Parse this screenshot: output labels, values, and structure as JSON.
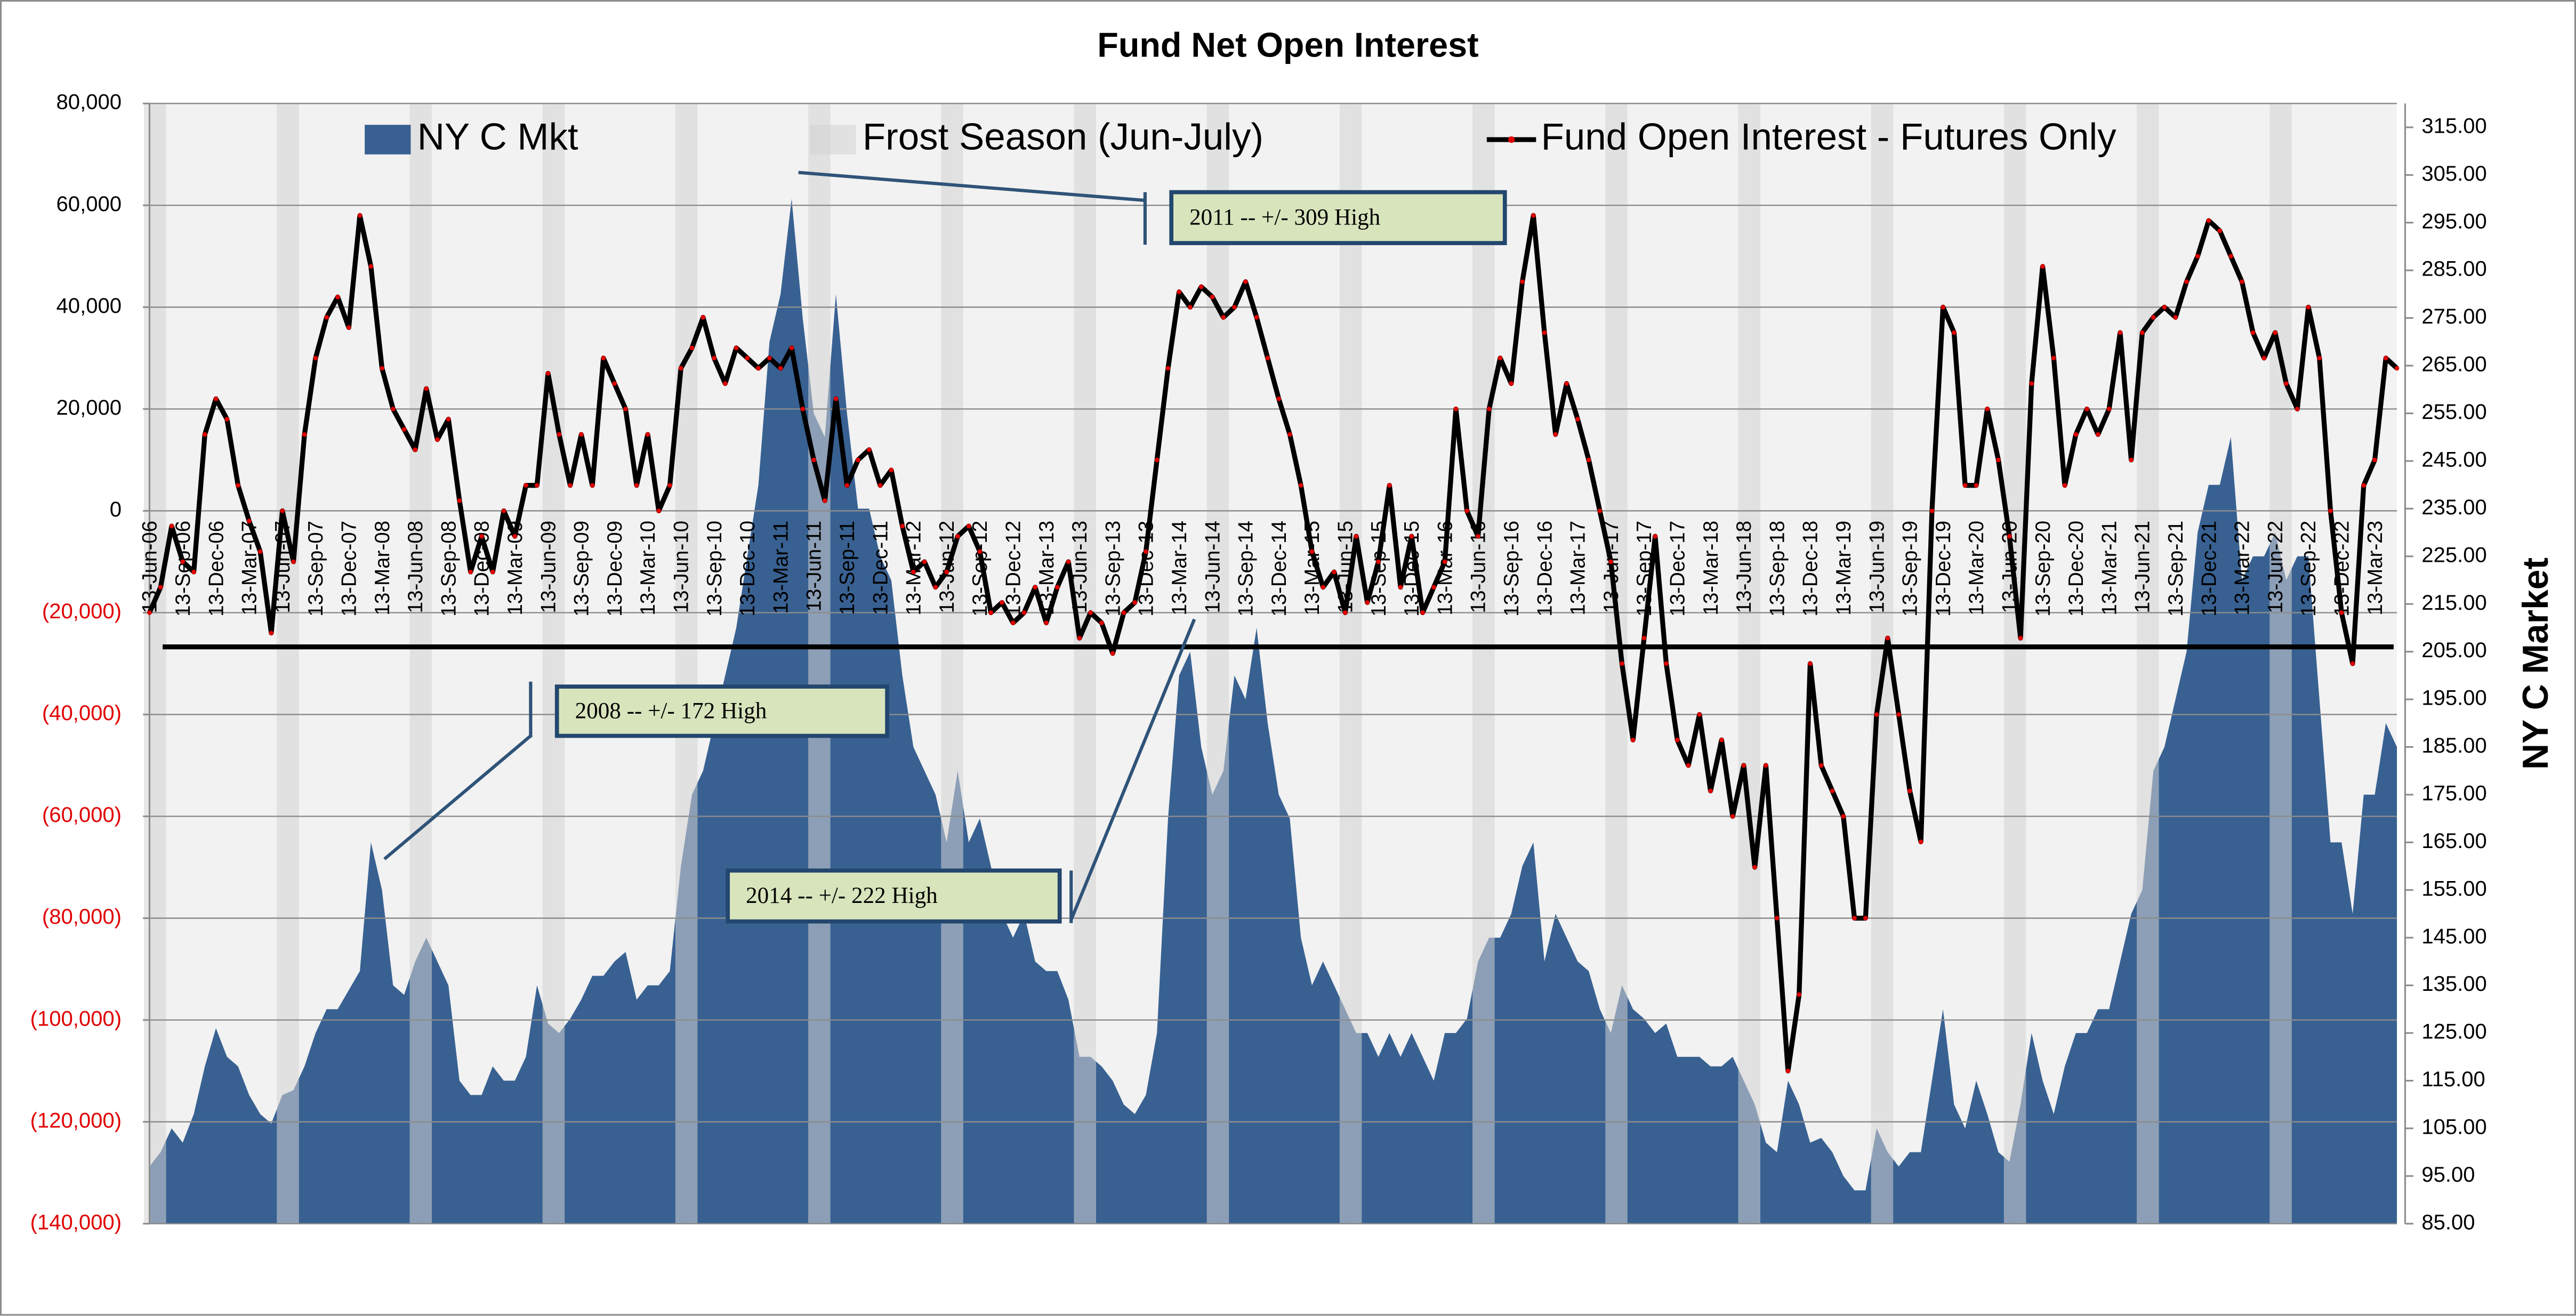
{
  "chart_data": {
    "type": "combo",
    "title": "Fund Net Open Interest",
    "y2_label": "NY C Market",
    "legend": "top",
    "grid": true,
    "negative_tick_color": "#e00000",
    "categories": [
      "13-Jun-06",
      null,
      null,
      "13-Sep-06",
      null,
      null,
      "13-Dec-06",
      null,
      null,
      "13-Mar-07",
      null,
      null,
      "13-Jun-07",
      null,
      null,
      "13-Sep-07",
      null,
      null,
      "13-Dec-07",
      null,
      null,
      "13-Mar-08",
      null,
      null,
      "13-Jun-08",
      null,
      null,
      "13-Sep-08",
      null,
      null,
      "13-Dec-08",
      null,
      null,
      "13-Mar-09",
      null,
      null,
      "13-Jun-09",
      null,
      null,
      "13-Sep-09",
      null,
      null,
      "13-Dec-09",
      null,
      null,
      "13-Mar-10",
      null,
      null,
      "13-Jun-10",
      null,
      null,
      "13-Sep-10",
      null,
      null,
      "13-Dec-10",
      null,
      null,
      "13-Mar-11",
      null,
      null,
      "13-Jun-11",
      null,
      null,
      "13-Sep-11",
      null,
      null,
      "13-Dec-11",
      null,
      null,
      "13-Mar-12",
      null,
      null,
      "13-Jun-12",
      null,
      null,
      "13-Sep-12",
      null,
      null,
      "13-Dec-12",
      null,
      null,
      "13-Mar-13",
      null,
      null,
      "13-Jun-13",
      null,
      null,
      "13-Sep-13",
      null,
      null,
      "13-Dec-13",
      null,
      null,
      "13-Mar-14",
      null,
      null,
      "13-Jun-14",
      null,
      null,
      "13-Sep-14",
      null,
      null,
      "13-Dec-14",
      null,
      null,
      "13-Mar-15",
      null,
      null,
      "13-Jun-15",
      null,
      null,
      "13-Sep-15",
      null,
      null,
      "13-Dec-15",
      null,
      null,
      "13-Mar-16",
      null,
      null,
      "13-Jun-16",
      null,
      null,
      "13-Sep-16",
      null,
      null,
      "13-Dec-16",
      null,
      null,
      "13-Mar-17",
      null,
      null,
      "13-Jun-17",
      null,
      null,
      "13-Sep-17",
      null,
      null,
      "13-Dec-17",
      null,
      null,
      "13-Mar-18",
      null,
      null,
      "13-Jun-18",
      null,
      null,
      "13-Sep-18",
      null,
      null,
      "13-Dec-18",
      null,
      null,
      "13-Mar-19",
      null,
      null,
      "13-Jun-19",
      null,
      null,
      "13-Sep-19",
      null,
      null,
      "13-Dec-19",
      null,
      null,
      "13-Mar-20",
      null,
      null,
      "13-Jun-20",
      null,
      null,
      "13-Sep-20",
      null,
      null,
      "13-Dec-20",
      null,
      null,
      "13-Mar-21",
      null,
      null,
      "13-Jun-21",
      null,
      null,
      "13-Sep-21",
      null,
      null,
      "13-Dec-21",
      null,
      null,
      "13-Mar-22",
      null,
      null,
      "13-Jun-22",
      null,
      null,
      "13-Sep-22",
      null,
      null,
      "13-Dec-22",
      null,
      null,
      "13-Mar-23",
      null,
      null
    ],
    "series": [
      {
        "name": "NY C Mkt",
        "type": "area",
        "axis": "y2",
        "color": "#386192",
        "values": [
          97,
          100,
          105,
          102,
          108,
          118,
          126,
          120,
          118,
          112,
          108,
          106,
          112,
          113,
          118,
          125,
          130,
          130,
          134,
          138,
          165,
          155,
          135,
          133,
          140,
          145,
          140,
          135,
          115,
          112,
          112,
          118,
          115,
          115,
          120,
          135,
          127,
          125,
          128,
          132,
          137,
          137,
          140,
          142,
          132,
          135,
          135,
          138,
          160,
          175,
          180,
          190,
          200,
          210,
          225,
          240,
          270,
          280,
          300,
          275,
          255,
          250,
          280,
          255,
          235,
          235,
          225,
          220,
          200,
          185,
          180,
          175,
          165,
          180,
          165,
          170,
          160,
          150,
          145,
          150,
          140,
          138,
          138,
          132,
          120,
          120,
          118,
          115,
          110,
          108,
          112,
          125,
          170,
          200,
          205,
          185,
          175,
          180,
          200,
          195,
          210,
          190,
          175,
          170,
          145,
          135,
          140,
          135,
          130,
          125,
          125,
          120,
          125,
          120,
          125,
          120,
          115,
          125,
          125,
          128,
          140,
          145,
          145,
          150,
          160,
          165,
          140,
          150,
          145,
          140,
          138,
          130,
          125,
          135,
          130,
          128,
          125,
          127,
          120,
          120,
          120,
          118,
          118,
          120,
          115,
          110,
          102,
          100,
          115,
          110,
          102,
          103,
          100,
          95,
          92,
          92,
          105,
          100,
          97,
          100,
          100,
          115,
          130,
          110,
          105,
          115,
          108,
          100,
          98,
          110,
          125,
          115,
          108,
          118,
          125,
          125,
          130,
          130,
          140,
          150,
          155,
          180,
          185,
          195,
          205,
          230,
          240,
          240,
          250,
          220,
          225,
          225,
          230,
          220,
          225,
          225,
          195,
          165,
          165,
          150,
          175,
          175,
          190,
          185
        ]
      },
      {
        "name": "Frost Season (Jun-July)",
        "type": "bar",
        "axis": "y2",
        "color": "#d4d4d4",
        "values": [
          320,
          320,
          null,
          null,
          null,
          null,
          null,
          null,
          null,
          null,
          null,
          null,
          320,
          320,
          null,
          null,
          null,
          null,
          null,
          null,
          null,
          null,
          null,
          null,
          320,
          320,
          null,
          null,
          null,
          null,
          null,
          null,
          null,
          null,
          null,
          null,
          320,
          320,
          null,
          null,
          null,
          null,
          null,
          null,
          null,
          null,
          null,
          null,
          320,
          320,
          null,
          null,
          null,
          null,
          null,
          null,
          null,
          null,
          null,
          null,
          320,
          320,
          null,
          null,
          null,
          null,
          null,
          null,
          null,
          null,
          null,
          null,
          320,
          320,
          null,
          null,
          null,
          null,
          null,
          null,
          null,
          null,
          null,
          null,
          320,
          320,
          null,
          null,
          null,
          null,
          null,
          null,
          null,
          null,
          null,
          null,
          320,
          320,
          null,
          null,
          null,
          null,
          null,
          null,
          null,
          null,
          null,
          null,
          320,
          320,
          null,
          null,
          null,
          null,
          null,
          null,
          null,
          null,
          null,
          null,
          320,
          320,
          null,
          null,
          null,
          null,
          null,
          null,
          null,
          null,
          null,
          null,
          320,
          320,
          null,
          null,
          null,
          null,
          null,
          null,
          null,
          null,
          null,
          null,
          320,
          320,
          null,
          null,
          null,
          null,
          null,
          null,
          null,
          null,
          null,
          null,
          320,
          320,
          null,
          null,
          null,
          null,
          null,
          null,
          null,
          null,
          null,
          null,
          320,
          320,
          null,
          null,
          null,
          null,
          null,
          null,
          null,
          null,
          null,
          null,
          320,
          320,
          null,
          null,
          null,
          null,
          null,
          null,
          null,
          null,
          null,
          null,
          320,
          320,
          null,
          null,
          null,
          null,
          null,
          null,
          null,
          null,
          null,
          null
        ]
      },
      {
        "name": "Fund Open Interest - Futures Only",
        "type": "line",
        "color": "#000000",
        "marker_color": "#e00000",
        "values": [
          -20000,
          -15000,
          -3000,
          -10000,
          -12000,
          15000,
          22000,
          18000,
          5000,
          -2000,
          -8000,
          -24000,
          0,
          -10000,
          15000,
          30000,
          38000,
          42000,
          36000,
          58000,
          48000,
          28000,
          20000,
          16000,
          12000,
          24000,
          14000,
          18000,
          2000,
          -12000,
          -5000,
          -12000,
          0,
          -5000,
          5000,
          5000,
          27000,
          15000,
          5000,
          15000,
          5000,
          30000,
          25000,
          20000,
          5000,
          15000,
          0,
          5000,
          28000,
          32000,
          38000,
          30000,
          25000,
          32000,
          30000,
          28000,
          30000,
          28000,
          32000,
          20000,
          10000,
          2000,
          22000,
          5000,
          10000,
          12000,
          5000,
          8000,
          -3000,
          -12000,
          -10000,
          -15000,
          -12000,
          -5000,
          -3000,
          -8000,
          -20000,
          -18000,
          -22000,
          -20000,
          -15000,
          -22000,
          -15000,
          -10000,
          -25000,
          -20000,
          -22000,
          -28000,
          -20000,
          -18000,
          -8000,
          10000,
          28000,
          43000,
          40000,
          44000,
          42000,
          38000,
          40000,
          45000,
          38000,
          30000,
          22000,
          15000,
          5000,
          -8000,
          -15000,
          -12000,
          -20000,
          -5000,
          -18000,
          -10000,
          5000,
          -15000,
          -5000,
          -20000,
          -15000,
          -10000,
          20000,
          0,
          -5000,
          20000,
          30000,
          25000,
          45000,
          58000,
          35000,
          15000,
          25000,
          18000,
          10000,
          0,
          -10000,
          -30000,
          -45000,
          -25000,
          -5000,
          -30000,
          -45000,
          -50000,
          -40000,
          -55000,
          -45000,
          -60000,
          -50000,
          -70000,
          -50000,
          -80000,
          -110000,
          -95000,
          -30000,
          -50000,
          -55000,
          -60000,
          -80000,
          -80000,
          -40000,
          -25000,
          -40000,
          -55000,
          -65000,
          0,
          40000,
          35000,
          5000,
          5000,
          20000,
          10000,
          -5000,
          -25000,
          25000,
          48000,
          30000,
          5000,
          15000,
          20000,
          15000,
          20000,
          35000,
          10000,
          35000,
          38000,
          40000,
          38000,
          45000,
          50000,
          57000,
          55000,
          50000,
          45000,
          35000,
          30000,
          35000,
          25000,
          20000,
          40000,
          30000,
          0,
          -20000,
          -30000,
          5000,
          10000,
          30000,
          28000
        ]
      }
    ],
    "ylim": [
      -140000,
      80000
    ],
    "yticks": [
      {
        "value": -140000,
        "label": "(140,000)"
      },
      {
        "value": -120000,
        "label": "(120,000)"
      },
      {
        "value": -100000,
        "label": "(100,000)"
      },
      {
        "value": -80000,
        "label": "(80,000)"
      },
      {
        "value": -60000,
        "label": "(60,000)"
      },
      {
        "value": -40000,
        "label": "(40,000)"
      },
      {
        "value": -20000,
        "label": "(20,000)"
      },
      0,
      {
        "value": 20000,
        "label": "20,000"
      },
      {
        "value": 40000,
        "label": "40,000"
      },
      {
        "value": 60000,
        "label": "60,000"
      },
      {
        "value": 80000,
        "label": "80,000"
      }
    ],
    "y2lim": [
      85,
      320
    ],
    "y2ticks": [
      {
        "value": 85,
        "label": "85.00"
      },
      {
        "value": 95,
        "label": "95.00"
      },
      {
        "value": 105,
        "label": "105.00"
      },
      {
        "value": 115,
        "label": "115.00"
      },
      {
        "value": 125,
        "label": "125.00"
      },
      {
        "value": 135,
        "label": "135.00"
      },
      {
        "value": 145,
        "label": "145.00"
      },
      {
        "value": 155,
        "label": "155.00"
      },
      {
        "value": 165,
        "label": "165.00"
      },
      {
        "value": 175,
        "label": "175.00"
      },
      {
        "value": 185,
        "label": "185.00"
      },
      {
        "value": 195,
        "label": "195.00"
      },
      {
        "value": 205,
        "label": "205.00"
      },
      {
        "value": 215,
        "label": "215.00"
      },
      {
        "value": 225,
        "label": "225.00"
      },
      {
        "value": 235,
        "label": "235.00"
      },
      {
        "value": 245,
        "label": "245.00"
      },
      {
        "value": 255,
        "label": "255.00"
      },
      {
        "value": 265,
        "label": "265.00"
      },
      {
        "value": 275,
        "label": "275.00"
      },
      {
        "value": 285,
        "label": "285.00"
      },
      {
        "value": 295,
        "label": "295.00"
      },
      {
        "value": 305,
        "label": "305.00"
      },
      {
        "value": 315,
        "label": "315.00"
      }
    ],
    "reference_lines": [
      {
        "axis": "y2",
        "value": 206,
        "color": "#000000"
      }
    ],
    "annotations": [
      {
        "text": "2011 -- +/- 309 High"
      },
      {
        "text": "2008 -- +/- 172 High"
      },
      {
        "text": "2014 -- +/- 222 High"
      }
    ]
  }
}
